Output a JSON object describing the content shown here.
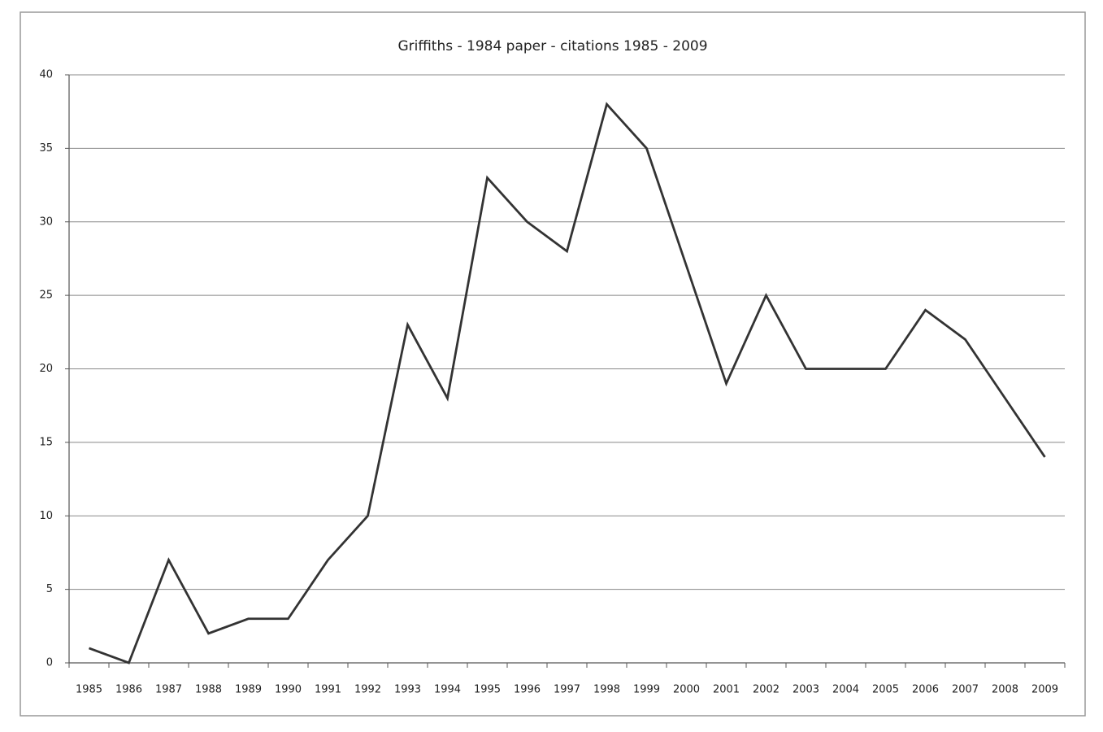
{
  "chart_data": {
    "type": "line",
    "title": "Griffiths - 1984 paper - citations 1985 - 2009",
    "categories": [
      "1985",
      "1986",
      "1987",
      "1988",
      "1989",
      "1990",
      "1991",
      "1992",
      "1993",
      "1994",
      "1995",
      "1996",
      "1997",
      "1998",
      "1999",
      "2000",
      "2001",
      "2002",
      "2003",
      "2004",
      "2005",
      "2006",
      "2007",
      "2008",
      "2009"
    ],
    "values": [
      1,
      0,
      7,
      2,
      3,
      3,
      7,
      10,
      23,
      18,
      33,
      30,
      28,
      38,
      35,
      27,
      19,
      25,
      20,
      20,
      20,
      24,
      22,
      18,
      14
    ],
    "color": "#333333",
    "ylim": [
      0,
      40
    ],
    "yticks": [
      0,
      5,
      10,
      15,
      20,
      25,
      30,
      35,
      40
    ],
    "grid": true
  }
}
